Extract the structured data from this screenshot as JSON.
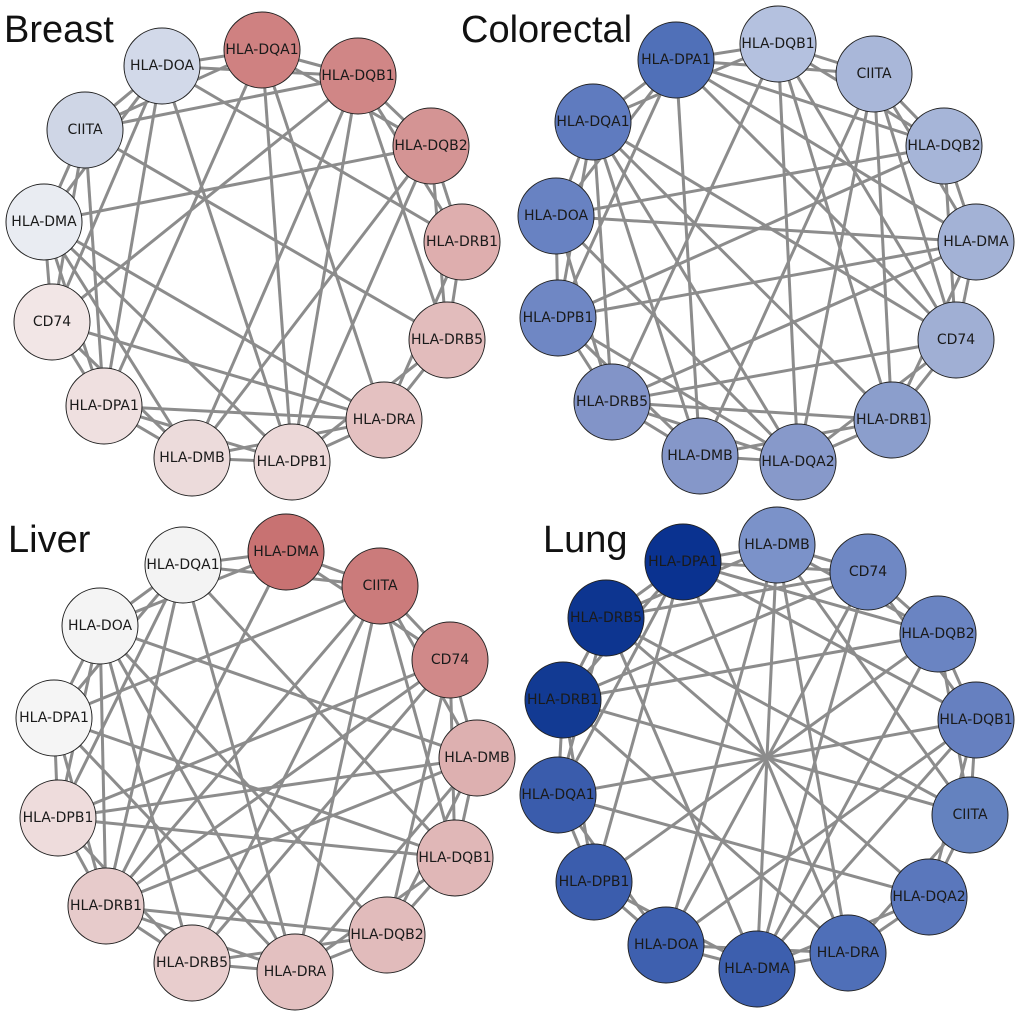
{
  "edge_color": "#8c8c8c",
  "panels": [
    {
      "title": "Breast",
      "nodes": [
        {
          "id": "HLA-DQA1",
          "color": "#cf8181"
        },
        {
          "id": "HLA-DQB1",
          "color": "#d08686"
        },
        {
          "id": "HLA-DQB2",
          "color": "#d49494"
        },
        {
          "id": "HLA-DRB1",
          "color": "#deaeae"
        },
        {
          "id": "HLA-DRB5",
          "color": "#e2bcbc"
        },
        {
          "id": "HLA-DRA",
          "color": "#e4c1c1"
        },
        {
          "id": "HLA-DPB1",
          "color": "#ecd8d8"
        },
        {
          "id": "HLA-DMB",
          "color": "#ecdbdb"
        },
        {
          "id": "HLA-DPA1",
          "color": "#efe0e0"
        },
        {
          "id": "CD74",
          "color": "#f2e6e6"
        },
        {
          "id": "HLA-DMA",
          "color": "#e9ecf2"
        },
        {
          "id": "CIITA",
          "color": "#cfd6e6"
        },
        {
          "id": "HLA-DOA",
          "color": "#d2d9e9"
        }
      ]
    },
    {
      "title": "Colorectal",
      "nodes": [
        {
          "id": "HLA-DQB1",
          "color": "#b4c1df"
        },
        {
          "id": "CIITA",
          "color": "#a9b7d9"
        },
        {
          "id": "HLA-DQB2",
          "color": "#a6b5d8"
        },
        {
          "id": "HLA-DMA",
          "color": "#a3b2d6"
        },
        {
          "id": "CD74",
          "color": "#a0afd4"
        },
        {
          "id": "HLA-DRB1",
          "color": "#8b9ecc"
        },
        {
          "id": "HLA-DQA2",
          "color": "#8799ca"
        },
        {
          "id": "HLA-DMB",
          "color": "#8597c9"
        },
        {
          "id": "HLA-DRB5",
          "color": "#8294c8"
        },
        {
          "id": "HLA-DPB1",
          "color": "#6f87c4"
        },
        {
          "id": "HLA-DOA",
          "color": "#6882c2"
        },
        {
          "id": "HLA-DQA1",
          "color": "#5f7bbf"
        },
        {
          "id": "HLA-DPA1",
          "color": "#5070b8"
        }
      ]
    },
    {
      "title": "Liver",
      "nodes": [
        {
          "id": "HLA-DMA",
          "color": "#c87272"
        },
        {
          "id": "CIITA",
          "color": "#cb7b7b"
        },
        {
          "id": "CD74",
          "color": "#d08989"
        },
        {
          "id": "HLA-DMB",
          "color": "#ddb0b0"
        },
        {
          "id": "HLA-DQB1",
          "color": "#e0b7b7"
        },
        {
          "id": "HLA-DQB2",
          "color": "#e1bbbb"
        },
        {
          "id": "HLA-DRA",
          "color": "#e3c0c0"
        },
        {
          "id": "HLA-DRB5",
          "color": "#e8cdcd"
        },
        {
          "id": "HLA-DRB1",
          "color": "#e7cbcb"
        },
        {
          "id": "HLA-DPB1",
          "color": "#eedcdc"
        },
        {
          "id": "HLA-DPA1",
          "color": "#f5f5f5"
        },
        {
          "id": "HLA-DOA",
          "color": "#f4f4f4"
        },
        {
          "id": "HLA-DQA1",
          "color": "#f3f3f3"
        }
      ]
    },
    {
      "title": "Lung",
      "nodes": [
        {
          "id": "HLA-DMB",
          "color": "#7b92c9"
        },
        {
          "id": "CD74",
          "color": "#6f88c4"
        },
        {
          "id": "HLA-DQB2",
          "color": "#6a84c2"
        },
        {
          "id": "HLA-DQB1",
          "color": "#6680c0"
        },
        {
          "id": "CIITA",
          "color": "#6482bf"
        },
        {
          "id": "HLA-DQA2",
          "color": "#5a77bc"
        },
        {
          "id": "HLA-DRA",
          "color": "#4f6fb8"
        },
        {
          "id": "HLA-DMA",
          "color": "#3d5fae"
        },
        {
          "id": "HLA-DOA",
          "color": "#3e60af"
        },
        {
          "id": "HLA-DPB1",
          "color": "#3b5dad"
        },
        {
          "id": "HLA-DQA1",
          "color": "#3a5cac"
        },
        {
          "id": "HLA-DRB1",
          "color": "#123a93"
        },
        {
          "id": "HLA-DRB5",
          "color": "#0d3590"
        },
        {
          "id": "HLA-DPA1",
          "color": "#0a3290"
        }
      ]
    }
  ]
}
